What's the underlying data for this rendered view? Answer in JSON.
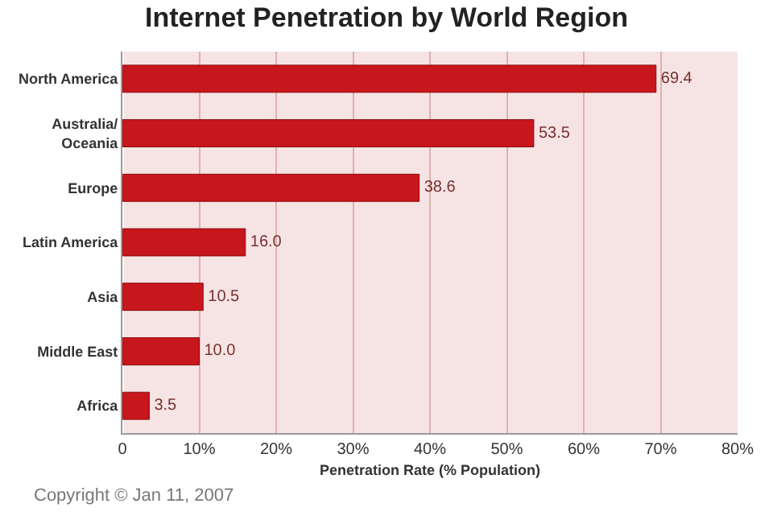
{
  "chart_data": {
    "type": "bar",
    "orientation": "horizontal",
    "title": "Internet Penetration by World Region",
    "xlabel": "Penetration Rate (% Population)",
    "categories": [
      "North America",
      "Australia/\nOceania",
      "Europe",
      "Latin America",
      "Asia",
      "Middle East",
      "Africa"
    ],
    "values": [
      69.4,
      53.5,
      38.6,
      16.0,
      10.5,
      10.0,
      3.5
    ],
    "value_labels": [
      "69.4",
      "53.5",
      "38.6",
      "16.0",
      "10.5",
      "10.0",
      "3.5"
    ],
    "color": "#c8161d",
    "xlim": [
      0,
      80
    ],
    "xticks": [
      0,
      {
        "value": 10,
        "label": "10%"
      },
      {
        "value": 20,
        "label": "20%"
      },
      {
        "value": 30,
        "label": "30%"
      },
      {
        "value": 40,
        "label": "40%"
      },
      {
        "value": 50,
        "label": "50%"
      },
      {
        "value": 60,
        "label": "60%"
      },
      {
        "value": 70,
        "label": "70%"
      },
      {
        "value": 80,
        "label": "80%"
      }
    ],
    "grid": "x",
    "legend": false,
    "annotations": [
      "Copyright © Jan 11, 2007"
    ]
  }
}
